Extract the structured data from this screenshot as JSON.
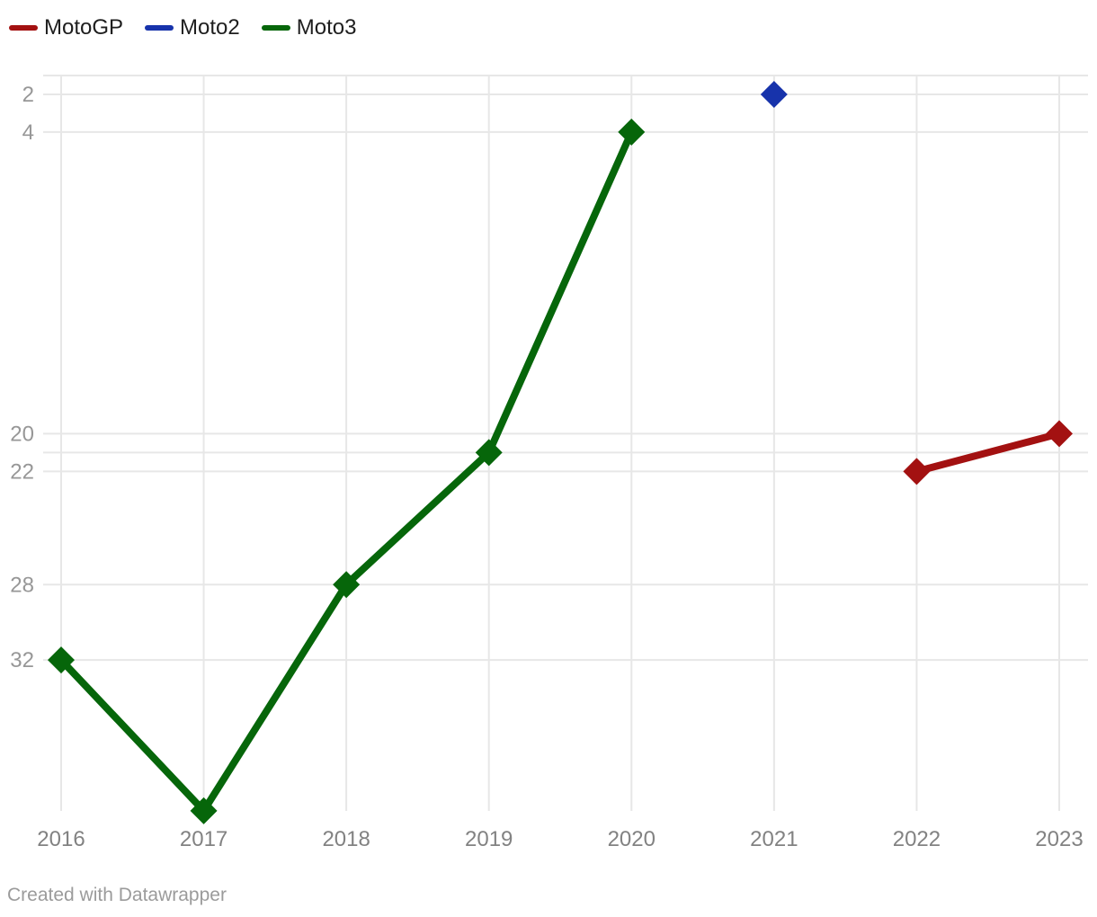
{
  "legend": {
    "items": [
      {
        "id": "motogp",
        "label": "MotoGP",
        "color": "#a31111"
      },
      {
        "id": "moto2",
        "label": "Moto2",
        "color": "#1733ab"
      },
      {
        "id": "moto3",
        "label": "Moto3",
        "color": "#06660a"
      }
    ]
  },
  "footer": {
    "credit": "Created with Datawrapper"
  },
  "chart_data": {
    "type": "line",
    "title": "",
    "xlabel": "",
    "ylabel": "",
    "x_axis": {
      "ticks": [
        2016,
        2017,
        2018,
        2019,
        2020,
        2021,
        2022,
        2023
      ]
    },
    "y_axis": {
      "inverted": true,
      "min": 1,
      "max": 40,
      "labeled_ticks": [
        2,
        4,
        20,
        22,
        28,
        32
      ],
      "gridline_values": [
        1,
        2,
        4,
        20,
        21,
        22,
        28,
        32
      ]
    },
    "marker": "diamond",
    "grid": true,
    "legend_position": "top-left",
    "series": [
      {
        "name": "MotoGP",
        "color": "#a31111",
        "points": [
          {
            "x": 2022,
            "y": 22
          },
          {
            "x": 2023,
            "y": 20
          }
        ]
      },
      {
        "name": "Moto2",
        "color": "#1733ab",
        "points": [
          {
            "x": 2021,
            "y": 2
          }
        ]
      },
      {
        "name": "Moto3",
        "color": "#06660a",
        "points": [
          {
            "x": 2016,
            "y": 32
          },
          {
            "x": 2017,
            "y": 40
          },
          {
            "x": 2018,
            "y": 28
          },
          {
            "x": 2019,
            "y": 21
          },
          {
            "x": 2020,
            "y": 4
          }
        ]
      }
    ],
    "colors": {
      "gridline": "#e7e7e7",
      "y_tick_text": "#979797",
      "x_tick_text": "#828282",
      "legend_text": "#1e1e1e",
      "credit_text": "#9b9b9b"
    }
  }
}
